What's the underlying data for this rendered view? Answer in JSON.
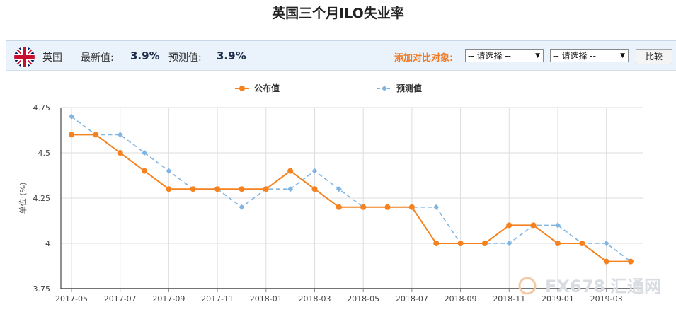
{
  "page": {
    "title": "英国三个月ILO失业率"
  },
  "info_bar": {
    "country": "英国",
    "latest_label": "最新值:",
    "latest_value": "3.9%",
    "forecast_label": "预测值:",
    "forecast_value": "3.9%",
    "compare_label": "添加对比对象:",
    "select_1": "-- 请选择 --",
    "select_2": "-- 请选择 --",
    "compare_button": "比较"
  },
  "watermark": {
    "text": "FX678",
    "text2": "汇通网"
  },
  "colors": {
    "published": "#f5821f",
    "forecast": "#7fb4e3"
  },
  "chart_data": {
    "type": "line",
    "ylabel": "单位:(%)",
    "ylim": [
      3.75,
      4.75
    ],
    "yticks": [
      4.75,
      4.5,
      4.25,
      4,
      3.75
    ],
    "x": [
      "2017-05",
      "2017-06",
      "2017-07",
      "2017-08",
      "2017-09",
      "2017-10",
      "2017-11",
      "2017-12",
      "2018-01",
      "2018-02",
      "2018-03",
      "2018-04",
      "2018-05",
      "2018-06",
      "2018-07",
      "2018-08",
      "2018-09",
      "2018-10",
      "2018-11",
      "2018-12",
      "2019-01",
      "2019-02",
      "2019-03",
      "2019-04"
    ],
    "xtick_labels": [
      "2017-05",
      "2017-07",
      "2017-09",
      "2017-11",
      "2018-01",
      "2018-03",
      "2018-05",
      "2018-07",
      "2018-09",
      "2018-11",
      "2019-01",
      "2019-03"
    ],
    "legend_position": "top-center",
    "grid": true,
    "series": [
      {
        "name": "公布值",
        "style": "solid",
        "marker": "circle",
        "values": [
          4.6,
          4.6,
          4.5,
          4.4,
          4.3,
          4.3,
          4.3,
          4.3,
          4.3,
          4.4,
          4.3,
          4.2,
          4.2,
          4.2,
          4.2,
          4.0,
          4.0,
          4.0,
          4.1,
          4.1,
          4.0,
          4.0,
          3.9,
          3.9
        ]
      },
      {
        "name": "预测值",
        "style": "dashed",
        "marker": "diamond",
        "values": [
          4.7,
          4.6,
          4.6,
          4.5,
          4.4,
          4.3,
          4.3,
          4.2,
          4.3,
          4.3,
          4.4,
          4.3,
          4.2,
          4.2,
          4.2,
          4.2,
          4.0,
          4.0,
          4.0,
          4.1,
          4.1,
          4.0,
          4.0,
          3.9
        ]
      }
    ]
  }
}
